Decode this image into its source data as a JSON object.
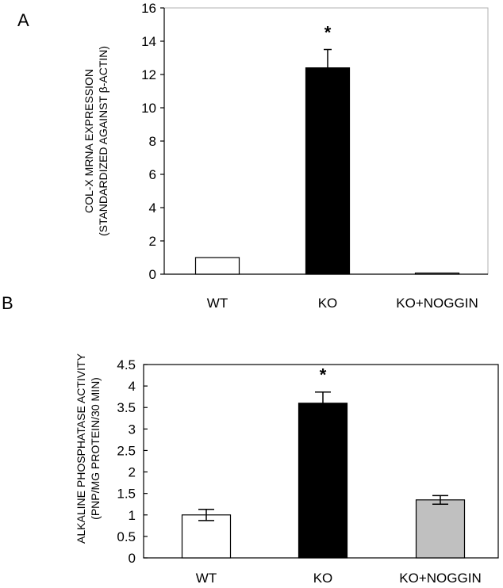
{
  "chart_data": [
    {
      "type": "bar",
      "panel_label": "A",
      "ylabel_lines": [
        "COL-X MRNA EXPRESSION",
        "(STANDARDIZED AGAINST β-ACTIN)"
      ],
      "categories": [
        "WT",
        "KO",
        "KO+NOGGIN"
      ],
      "values": [
        1.0,
        12.4,
        0.07
      ],
      "errors": [
        0.0,
        1.1,
        0.0
      ],
      "bar_colors": [
        "#ffffff",
        "#000000",
        "#c0c0c0"
      ],
      "ylim": [
        0,
        16
      ],
      "yticks": [
        0,
        2,
        4,
        6,
        8,
        10,
        12,
        14,
        16
      ],
      "ytick_labels": [
        "0",
        "2",
        "4",
        "6",
        "8",
        "10",
        "12",
        "14",
        "16"
      ],
      "annotations": [
        {
          "category": "KO",
          "text": "*"
        }
      ],
      "grid": false,
      "legend": "none"
    },
    {
      "type": "bar",
      "panel_label": "B",
      "ylabel_lines": [
        "ALKALINE PHOSPHATASE ACTIVITY",
        "(PNP/MG PROTEIN/30 MIN)"
      ],
      "categories": [
        "WT",
        "KO",
        "KO+NOGGIN"
      ],
      "values": [
        1.0,
        3.6,
        1.35
      ],
      "errors": [
        0.13,
        0.26,
        0.1
      ],
      "bar_colors": [
        "#ffffff",
        "#000000",
        "#c0c0c0"
      ],
      "ylim": [
        0,
        4.5
      ],
      "yticks": [
        0,
        0.5,
        1,
        1.5,
        2,
        2.5,
        3,
        3.5,
        4,
        4.5
      ],
      "ytick_labels": [
        "0",
        "0.5",
        "1",
        "1.5",
        "2",
        "2.5",
        "3",
        "3.5",
        "4",
        "4.5"
      ],
      "annotations": [
        {
          "category": "KO",
          "text": "*"
        }
      ],
      "grid": false,
      "legend": "none"
    }
  ]
}
